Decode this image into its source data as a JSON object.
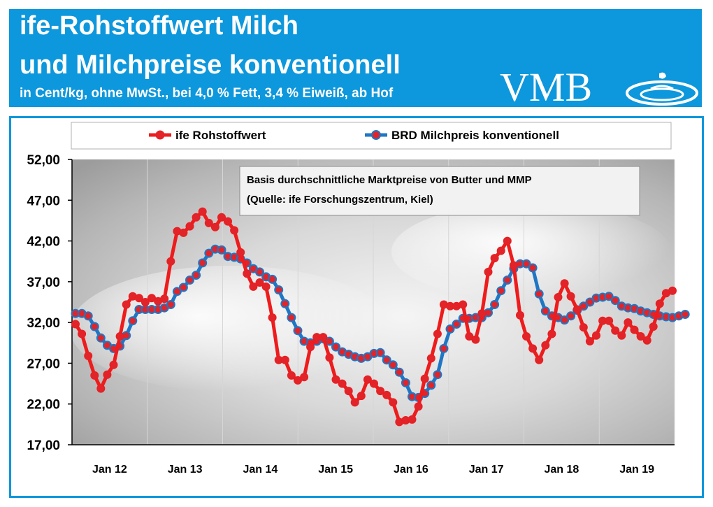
{
  "header": {
    "title_line1": "ife-Rohstoffwert Milch",
    "title_line2": "und Milchpreise konventionell",
    "subtitle": "in Cent/kg, ohne MwSt., bei 4,0 % Fett, 3,4 % Eiweiß, ab Hof",
    "logo_text": "VMB"
  },
  "colors": {
    "header_bg": "#0d97dc",
    "series_ife": "#ee1c1c",
    "series_brd": "#1f77c4",
    "marker_fill": "#e0242a"
  },
  "annotation": {
    "line1": "Basis durchschnittliche Marktpreise von Butter und MMP",
    "line2": "(Quelle: ife Forschungszentrum, Kiel)"
  },
  "chart_data": {
    "type": "line",
    "ylim": [
      17,
      52
    ],
    "y_ticks": [
      "17,00",
      "22,00",
      "27,00",
      "32,00",
      "37,00",
      "42,00",
      "47,00",
      "52,00"
    ],
    "x_tick_labels": [
      "Jan 12",
      "Jan 13",
      "Jan 14",
      "Jan 15",
      "Jan 16",
      "Jan 17",
      "Jan 18",
      "Jan 19"
    ],
    "legend_position": "top",
    "grid": "vertical",
    "series": [
      {
        "name": "ife Rohstoffwert",
        "values": [
          31.8,
          30.6,
          27.9,
          25.5,
          23.9,
          25.6,
          26.8,
          30.3,
          34.2,
          35.2,
          35.0,
          34.5,
          35.0,
          34.6,
          34.9,
          39.5,
          43.2,
          43.0,
          43.8,
          44.9,
          45.6,
          44.2,
          43.7,
          44.9,
          44.4,
          43.3,
          40.6,
          38.0,
          36.4,
          36.9,
          36.4,
          32.6,
          27.4,
          27.4,
          25.5,
          24.9,
          25.3,
          29.0,
          30.2,
          30.2,
          27.7,
          25.0,
          24.5,
          23.6,
          22.2,
          23.0,
          25.0,
          24.5,
          23.6,
          23.1,
          22.2,
          19.8,
          20.0,
          20.1,
          21.7,
          25.1,
          27.6,
          30.6,
          34.2,
          34.0,
          34.0,
          34.2,
          30.3,
          29.9,
          33.1,
          38.2,
          39.9,
          40.8,
          42.0,
          39.0,
          32.9,
          30.3,
          28.8,
          27.4,
          29.2,
          30.6,
          35.1,
          36.8,
          35.2,
          33.6,
          31.4,
          29.7,
          30.4,
          32.2,
          32.2,
          31.0,
          30.4,
          32.0,
          31.1,
          30.3,
          29.8,
          31.5,
          34.3,
          35.6,
          35.9
        ]
      },
      {
        "name": "BRD Milchpreis konventionell",
        "values": [
          33.1,
          33.1,
          32.8,
          31.5,
          30.1,
          29.2,
          28.8,
          29.1,
          30.4,
          32.2,
          33.6,
          33.6,
          33.6,
          33.6,
          33.8,
          34.2,
          35.8,
          36.3,
          37.2,
          37.8,
          39.3,
          40.5,
          41.0,
          40.9,
          40.1,
          40.0,
          39.8,
          39.3,
          38.6,
          38.2,
          37.6,
          37.3,
          36.0,
          34.3,
          32.6,
          31.0,
          29.7,
          29.5,
          29.7,
          30.0,
          29.7,
          29.0,
          28.4,
          28.1,
          27.8,
          27.6,
          27.8,
          28.2,
          28.3,
          27.4,
          26.8,
          25.9,
          24.6,
          22.9,
          22.8,
          23.3,
          24.3,
          25.6,
          28.8,
          31.2,
          31.8,
          32.5,
          32.5,
          32.6,
          32.6,
          33.2,
          34.2,
          35.9,
          37.2,
          38.6,
          39.2,
          39.2,
          38.7,
          35.5,
          33.4,
          32.8,
          32.6,
          32.3,
          32.8,
          33.5,
          34.0,
          34.5,
          35.0,
          35.1,
          35.2,
          34.7,
          34.0,
          33.8,
          33.7,
          33.4,
          33.2,
          33.0,
          32.8,
          32.7,
          32.6,
          32.8,
          33.0
        ]
      }
    ]
  }
}
